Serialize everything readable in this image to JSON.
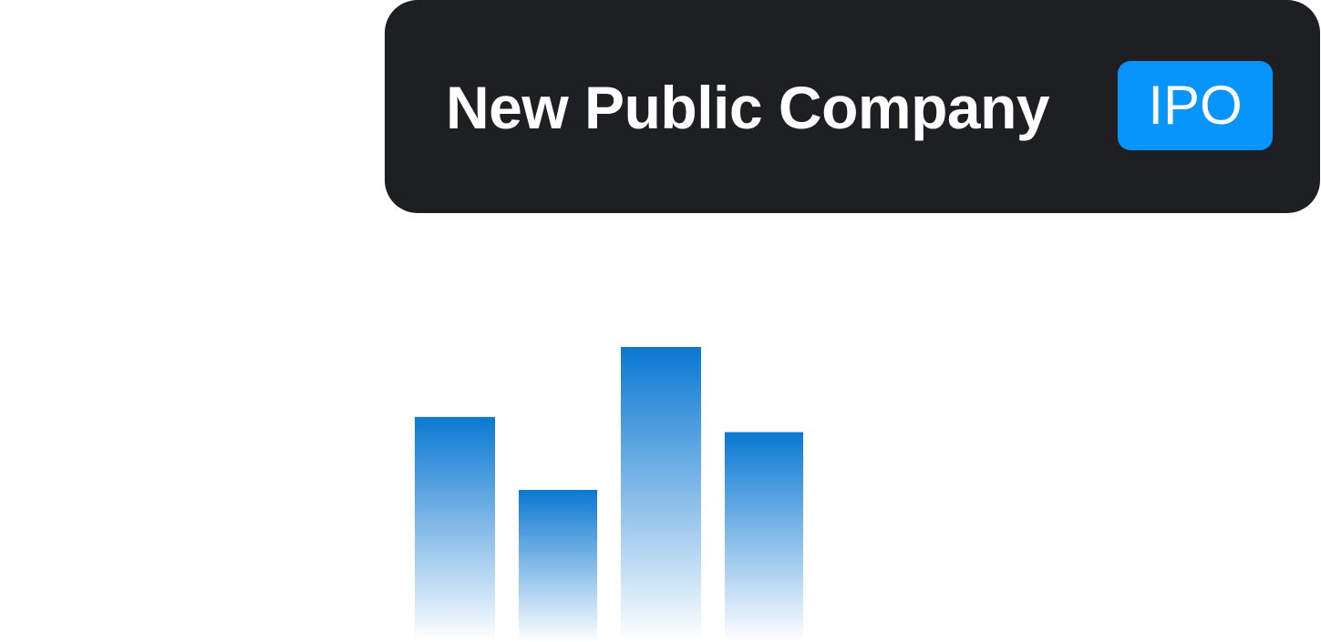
{
  "header": {
    "title": "New Public Company",
    "badge_label": "IPO"
  },
  "colors": {
    "card_background": "#1e1f23",
    "badge_background": "#0795fb",
    "text": "#ffffff",
    "bar_top": "#0a78d2",
    "bar_bottom": "#ffffff"
  },
  "chart_data": {
    "type": "bar",
    "categories": [
      "",
      "",
      "",
      ""
    ],
    "values": [
      0.74,
      0.5,
      0.97,
      0.69
    ],
    "ylim": [
      0,
      1
    ],
    "grid": false,
    "axes_visible": false,
    "fill": "vertical gradient, blue fading to white"
  }
}
